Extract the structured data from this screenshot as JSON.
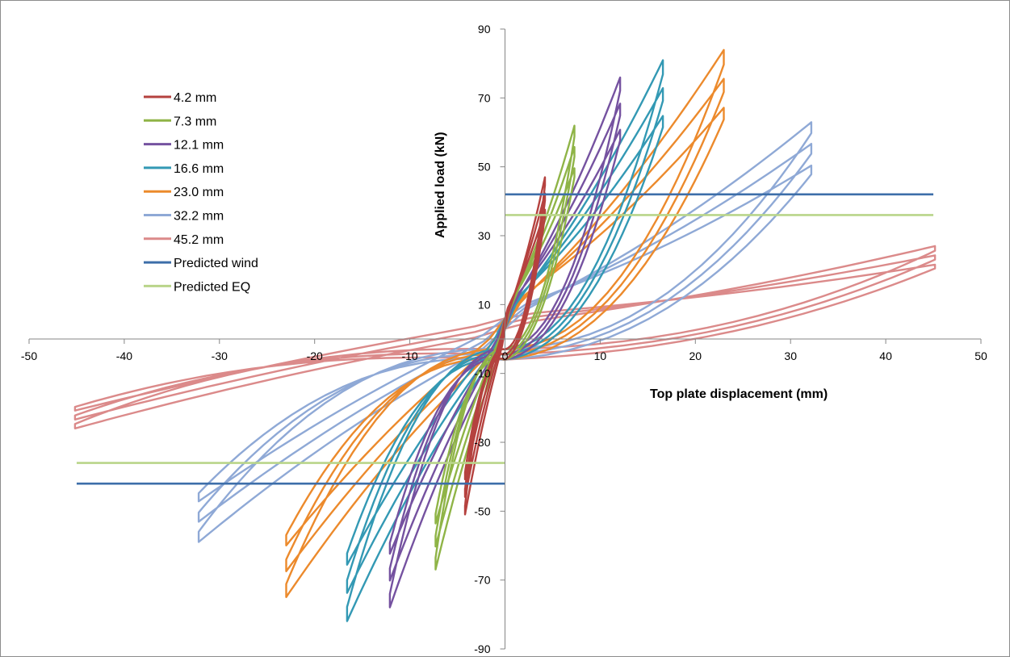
{
  "chart_data": {
    "type": "line",
    "title": "",
    "xlabel": "Top plate displacement (mm)",
    "ylabel": "Applied load (kN)",
    "xlim": [
      -50,
      50
    ],
    "ylim": [
      -90,
      90
    ],
    "x_ticks": [
      -50,
      -40,
      -30,
      -20,
      -10,
      0,
      10,
      20,
      30,
      40,
      50
    ],
    "y_ticks": [
      90,
      70,
      50,
      30,
      10,
      -10,
      -30,
      -50,
      -70,
      -90
    ],
    "grid": false,
    "legend_position": "top-left",
    "series": [
      {
        "name": "4.2 mm",
        "color": "#b5423f",
        "amplitude_mm": 4.2,
        "peak_load_pos": 47,
        "peak_load_neg": -51
      },
      {
        "name": "7.3 mm",
        "color": "#8fb447",
        "amplitude_mm": 7.3,
        "peak_load_pos": 62,
        "peak_load_neg": -67
      },
      {
        "name": "12.1 mm",
        "color": "#7552a0",
        "amplitude_mm": 12.1,
        "peak_load_pos": 76,
        "peak_load_neg": -78
      },
      {
        "name": "16.6 mm",
        "color": "#3399b4",
        "amplitude_mm": 16.6,
        "peak_load_pos": 81,
        "peak_load_neg": -82
      },
      {
        "name": "23.0 mm",
        "color": "#ec8a2c",
        "amplitude_mm": 23.0,
        "peak_load_pos": 84,
        "peak_load_neg": -75
      },
      {
        "name": "32.2 mm",
        "color": "#8fa9d6",
        "amplitude_mm": 32.2,
        "peak_load_pos": 63,
        "peak_load_neg": -59
      },
      {
        "name": "45.2 mm",
        "color": "#db8a8a",
        "amplitude_mm": 45.2,
        "peak_load_pos": 27,
        "peak_load_neg": -26
      }
    ],
    "reference_lines": [
      {
        "name": "Predicted wind",
        "color": "#3d6ea9",
        "segments": [
          {
            "x": [
              0,
              45
            ],
            "y": 42
          },
          {
            "x": [
              -45,
              0
            ],
            "y": -42
          }
        ]
      },
      {
        "name": "Predicted EQ",
        "color": "#b9d58a",
        "segments": [
          {
            "x": [
              0,
              45
            ],
            "y": 36
          },
          {
            "x": [
              -45,
              0
            ],
            "y": -36
          }
        ]
      }
    ]
  }
}
